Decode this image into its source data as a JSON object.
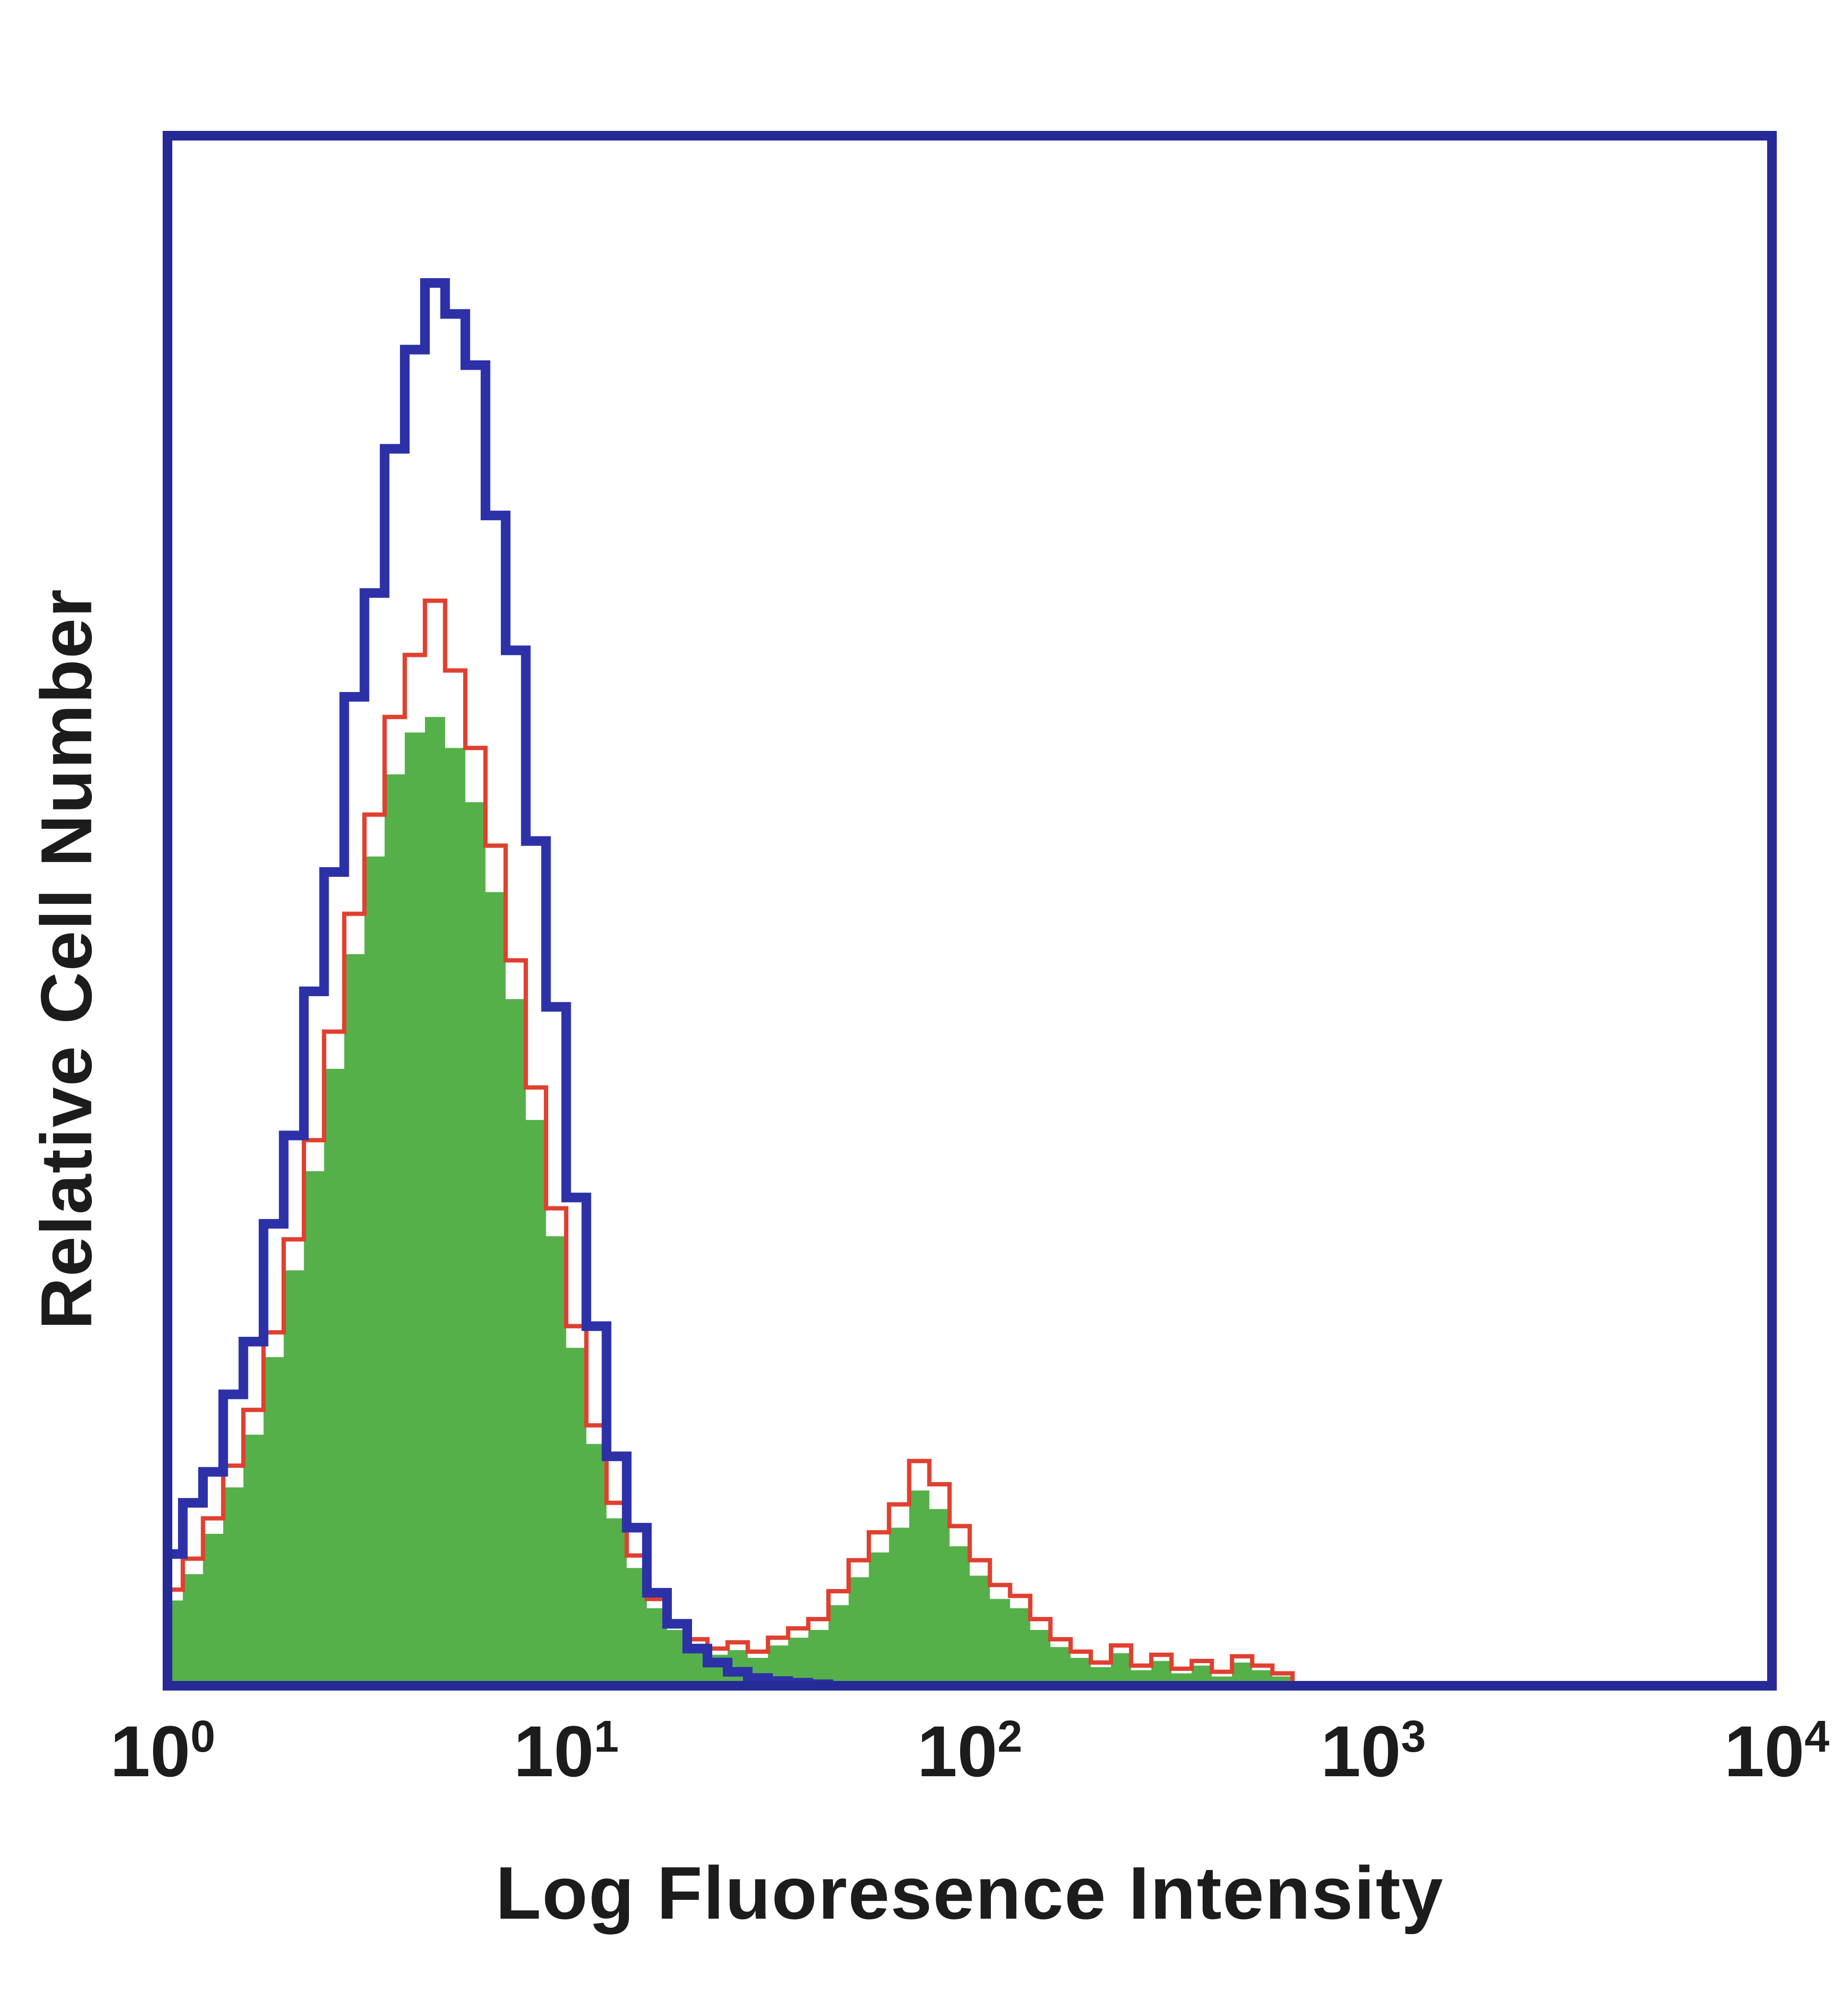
{
  "figure": {
    "background_color": "#ffffff",
    "text_color": "#1c1c1c"
  },
  "chart_data": {
    "type": "area",
    "subtype": "flow-cytometry-histogram-overlay",
    "title": "",
    "xlabel": "Log Fluoresence Intensity",
    "ylabel": "Relative Cell Number",
    "x_scale": "log10",
    "x_range_log10": [
      0,
      4
    ],
    "ylim": [
      0,
      1
    ],
    "grid": false,
    "legend": "none",
    "frame_color": "#262a96",
    "frame_line_width": 20,
    "x_tick_positions_log10": [
      0,
      1,
      2,
      3,
      4
    ],
    "x_ticks": [
      {
        "base": "10",
        "exp": "0"
      },
      {
        "base": "10",
        "exp": "1"
      },
      {
        "base": "10",
        "exp": "2"
      },
      {
        "base": "10",
        "exp": "3"
      },
      {
        "base": "10",
        "exp": "4"
      }
    ],
    "x_log_start": 0,
    "x_log_step": 0.05,
    "series": [
      {
        "name": "green-filled-histogram",
        "style": "area",
        "color": "#55b04a",
        "line_width": 0,
        "values": [
          0.055,
          0.072,
          0.098,
          0.128,
          0.162,
          0.212,
          0.268,
          0.332,
          0.398,
          0.472,
          0.535,
          0.588,
          0.615,
          0.625,
          0.605,
          0.57,
          0.512,
          0.443,
          0.365,
          0.29,
          0.218,
          0.156,
          0.108,
          0.076,
          0.05,
          0.036,
          0.026,
          0.02,
          0.023,
          0.018,
          0.026,
          0.031,
          0.036,
          0.052,
          0.07,
          0.086,
          0.102,
          0.126,
          0.114,
          0.09,
          0.071,
          0.056,
          0.05,
          0.036,
          0.025,
          0.018,
          0.012,
          0.021,
          0.01,
          0.016,
          0.008,
          0.013,
          0.006,
          0.015,
          0.01,
          0.006,
          0,
          0,
          0,
          0,
          0,
          0,
          0,
          0,
          0,
          0,
          0,
          0,
          0,
          0,
          0,
          0,
          0,
          0,
          0,
          0,
          0,
          0,
          0,
          0,
          0
        ]
      },
      {
        "name": "red-outline-histogram",
        "style": "line",
        "color": "#e04030",
        "line_width": 9,
        "values": [
          0.062,
          0.082,
          0.108,
          0.142,
          0.178,
          0.228,
          0.288,
          0.352,
          0.422,
          0.498,
          0.562,
          0.625,
          0.665,
          0.7,
          0.655,
          0.605,
          0.542,
          0.468,
          0.386,
          0.308,
          0.232,
          0.168,
          0.118,
          0.084,
          0.056,
          0.041,
          0.03,
          0.024,
          0.028,
          0.022,
          0.031,
          0.037,
          0.043,
          0.061,
          0.081,
          0.099,
          0.117,
          0.145,
          0.13,
          0.103,
          0.081,
          0.065,
          0.058,
          0.043,
          0.03,
          0.022,
          0.015,
          0.026,
          0.013,
          0.02,
          0.011,
          0.016,
          0.009,
          0.019,
          0.013,
          0.008,
          0,
          0,
          0,
          0,
          0,
          0,
          0,
          0,
          0,
          0,
          0,
          0,
          0,
          0,
          0,
          0,
          0,
          0,
          0,
          0,
          0,
          0,
          0,
          0,
          0
        ]
      },
      {
        "name": "blue-outline-histogram",
        "style": "line",
        "color": "#2d31a8",
        "line_width": 20,
        "values": [
          0.085,
          0.118,
          0.138,
          0.188,
          0.222,
          0.298,
          0.355,
          0.448,
          0.525,
          0.638,
          0.705,
          0.798,
          0.862,
          0.905,
          0.885,
          0.852,
          0.755,
          0.668,
          0.545,
          0.438,
          0.315,
          0.232,
          0.148,
          0.102,
          0.06,
          0.04,
          0.024,
          0.015,
          0.009,
          0.005,
          0.003,
          0.002,
          0.001,
          0,
          0,
          0,
          0,
          0,
          0,
          0,
          0,
          0,
          0,
          0,
          0,
          0,
          0,
          0,
          0,
          0,
          0,
          0,
          0,
          0,
          0,
          0,
          0,
          0,
          0,
          0,
          0,
          0,
          0,
          0,
          0,
          0,
          0,
          0,
          0,
          0,
          0,
          0,
          0,
          0,
          0,
          0,
          0,
          0,
          0,
          0,
          0
        ]
      }
    ]
  }
}
